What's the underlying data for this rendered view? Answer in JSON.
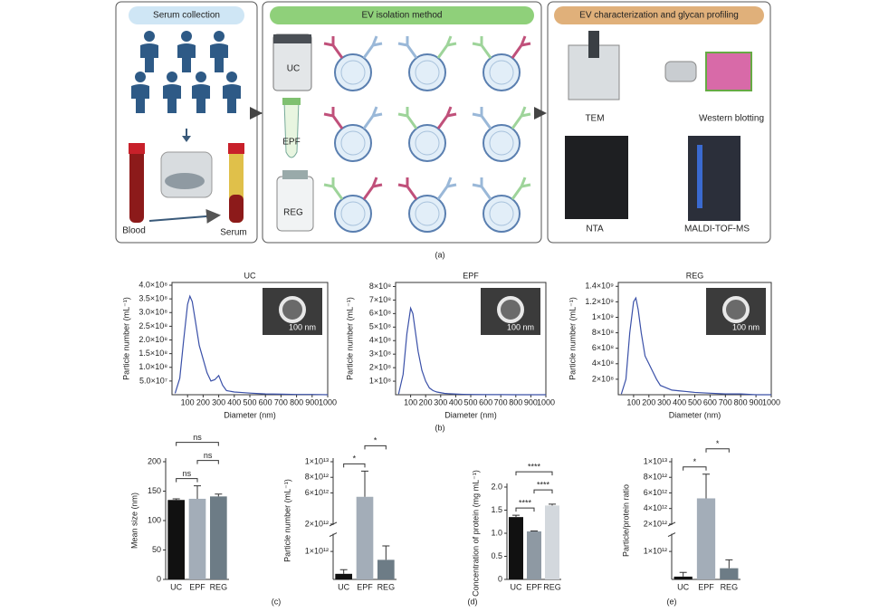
{
  "panel_a": {
    "headers": [
      "Serum collection",
      "EV isolation method",
      "EV characterization and glycan profiling"
    ],
    "methods": [
      "UC",
      "EPF",
      "REG"
    ],
    "blood": "Blood",
    "serum": "Serum",
    "instruments": [
      "TEM",
      "Western blotting",
      "NTA",
      "MALDI-TOF-MS"
    ]
  },
  "panel_labels": [
    "(a)",
    "(b)",
    "(c)",
    "(d)",
    "(e)"
  ],
  "chart_data": [
    {
      "type": "line",
      "title": "UC",
      "x_label": "Diameter (nm)",
      "y_label": "Particle number (mL⁻¹)",
      "scale_bar": "100 nm",
      "color": "#3a50a8",
      "x": [
        20,
        50,
        75,
        100,
        115,
        130,
        150,
        175,
        200,
        225,
        250,
        275,
        300,
        325,
        350,
        400,
        450,
        500,
        600,
        700,
        800,
        900,
        1000
      ],
      "values": [
        5000000,
        60000000,
        200000000,
        330000000,
        360000000,
        340000000,
        270000000,
        180000000,
        130000000,
        80000000,
        50000000,
        55000000,
        70000000,
        35000000,
        15000000,
        10000000,
        8000000,
        6000000,
        3000000,
        2000000,
        1000000,
        1000000,
        0
      ],
      "xlim": [
        0,
        1000
      ],
      "xticks": [
        100,
        200,
        300,
        400,
        500,
        600,
        700,
        800,
        900,
        1000
      ],
      "ylim": [
        0,
        410000000
      ],
      "yticks": [
        {
          "value": 50000000,
          "label": "5.0×10⁷"
        },
        {
          "value": 100000000,
          "label": "1.0×10⁸"
        },
        {
          "value": 150000000,
          "label": "1.5×10⁸"
        },
        {
          "value": 200000000,
          "label": "2.0×10⁸"
        },
        {
          "value": 250000000,
          "label": "2.5×10⁸"
        },
        {
          "value": 300000000,
          "label": "3.0×10⁸"
        },
        {
          "value": 350000000,
          "label": "3.5×10⁸"
        },
        {
          "value": 400000000,
          "label": "4.0×10⁸"
        }
      ]
    },
    {
      "type": "line",
      "title": "EPF",
      "x_label": "Diameter (nm)",
      "y_label": "Particle number (mL⁻¹)",
      "scale_bar": "100 nm",
      "color": "#3a50a8",
      "x": [
        20,
        50,
        75,
        100,
        115,
        130,
        150,
        175,
        200,
        225,
        250,
        275,
        300,
        325,
        350,
        400,
        450,
        500,
        600,
        700,
        800,
        900,
        1000
      ],
      "values": [
        5000000,
        150000000,
        450000000,
        640000000,
        600000000,
        480000000,
        320000000,
        180000000,
        100000000,
        50000000,
        30000000,
        20000000,
        15000000,
        10000000,
        8000000,
        5000000,
        3000000,
        2000000,
        1000000,
        1000000,
        0,
        0,
        0
      ],
      "xlim": [
        0,
        1000
      ],
      "xticks": [
        100,
        200,
        300,
        400,
        500,
        600,
        700,
        800,
        900,
        1000
      ],
      "ylim": [
        0,
        830000000
      ],
      "yticks": [
        {
          "value": 100000000,
          "label": "1×10⁸"
        },
        {
          "value": 200000000,
          "label": "2×10⁸"
        },
        {
          "value": 300000000,
          "label": "3×10⁸"
        },
        {
          "value": 400000000,
          "label": "4×10⁸"
        },
        {
          "value": 500000000,
          "label": "5×10⁸"
        },
        {
          "value": 600000000,
          "label": "6×10⁸"
        },
        {
          "value": 700000000,
          "label": "7×10⁸"
        },
        {
          "value": 800000000,
          "label": "8×10⁸"
        }
      ]
    },
    {
      "type": "line",
      "title": "REG",
      "x_label": "Diameter (nm)",
      "y_label": "Particle number (mL⁻¹)",
      "scale_bar": "100 nm",
      "color": "#3a50a8",
      "x": [
        20,
        50,
        75,
        100,
        115,
        130,
        150,
        175,
        200,
        225,
        250,
        275,
        300,
        325,
        350,
        400,
        450,
        500,
        600,
        700,
        800,
        900,
        1000
      ],
      "values": [
        10000000,
        200000000,
        800000000,
        1200000000,
        1250000000,
        1100000000,
        800000000,
        500000000,
        400000000,
        300000000,
        200000000,
        120000000,
        100000000,
        80000000,
        60000000,
        50000000,
        40000000,
        30000000,
        20000000,
        10000000,
        10000000,
        0,
        0
      ],
      "xlim": [
        0,
        1000
      ],
      "xticks": [
        100,
        200,
        300,
        400,
        500,
        600,
        700,
        800,
        900,
        1000
      ],
      "ylim": [
        0,
        1450000000
      ],
      "yticks": [
        {
          "value": 200000000,
          "label": "2×10⁸"
        },
        {
          "value": 400000000,
          "label": "4×10⁸"
        },
        {
          "value": 600000000,
          "label": "6×10⁸"
        },
        {
          "value": 800000000,
          "label": "8×10⁸"
        },
        {
          "value": 1000000000,
          "label": "1×10⁹"
        },
        {
          "value": 1200000000,
          "label": "1.2×10⁹"
        },
        {
          "value": 1400000000,
          "label": "1.4×10⁹"
        }
      ]
    },
    {
      "type": "bar",
      "y_label": "Mean size (nm)",
      "categories": [
        "UC",
        "EPF",
        "REG"
      ],
      "values": [
        135,
        137,
        141
      ],
      "errors": [
        2,
        22,
        4
      ],
      "colors": [
        "#111111",
        "#a3adb8",
        "#6d7c86"
      ],
      "ylim": [
        0,
        200
      ],
      "yticks": [
        0,
        50,
        100,
        150,
        200
      ],
      "significance": [
        {
          "pair": [
            0,
            1
          ],
          "label": "ns"
        },
        {
          "pair": [
            1,
            2
          ],
          "label": "ns"
        },
        {
          "pair": [
            0,
            2
          ],
          "label": "ns"
        }
      ]
    },
    {
      "type": "bar",
      "y_label": "Particle number (mL⁻¹)",
      "categories": [
        "UC",
        "EPF",
        "REG"
      ],
      "values": [
        200000000000,
        5500000000000,
        700000000000
      ],
      "errors": [
        150000000000,
        3300000000000,
        500000000000
      ],
      "colors": [
        "#111111",
        "#a3adb8",
        "#6d7c86"
      ],
      "ylim": [
        0,
        10000000000000
      ],
      "ybreak": [
        1600000000000,
        2000000000000
      ],
      "yticks": [
        {
          "value": 1000000000000,
          "label": "1×10¹²"
        },
        {
          "value": 2000000000000,
          "label": "2×10¹²"
        },
        {
          "value": 6000000000000,
          "label": "6×10¹²"
        },
        {
          "value": 8000000000000,
          "label": "8×10¹²"
        },
        {
          "value": 10000000000000,
          "label": "1×10¹³"
        }
      ],
      "significance": [
        {
          "pair": [
            0,
            1
          ],
          "label": "*"
        },
        {
          "pair": [
            1,
            2
          ],
          "label": "*"
        }
      ]
    },
    {
      "type": "bar",
      "y_label": "Concentration of protein (mg mL⁻¹)",
      "categories": [
        "UC",
        "EPF",
        "REG"
      ],
      "values": [
        1.35,
        1.04,
        1.6
      ],
      "errors": [
        0.04,
        0.01,
        0.03
      ],
      "colors": [
        "#111111",
        "#8e99a3",
        "#d3d8dd"
      ],
      "ylim": [
        0,
        2.0
      ],
      "yticks": [
        0,
        0.5,
        {
          "value": 1.0,
          "label": "1.0"
        },
        1.5,
        {
          "value": 2.0,
          "label": "2.0"
        }
      ],
      "significance": [
        {
          "pair": [
            0,
            1
          ],
          "label": "****"
        },
        {
          "pair": [
            1,
            2
          ],
          "label": "****"
        },
        {
          "pair": [
            0,
            2
          ],
          "label": "****"
        }
      ]
    },
    {
      "type": "bar",
      "y_label": "Particle/protein ratio",
      "categories": [
        "UC",
        "EPF",
        "REG"
      ],
      "values": [
        100000000000,
        5300000000000,
        400000000000
      ],
      "errors": [
        150000000000,
        3100000000000,
        300000000000
      ],
      "colors": [
        "#111111",
        "#a3adb8",
        "#6d7c86"
      ],
      "ylim": [
        0,
        10000000000000
      ],
      "ybreak": [
        1600000000000,
        2000000000000
      ],
      "yticks": [
        {
          "value": 1000000000000,
          "label": "1×10¹²"
        },
        {
          "value": 2000000000000,
          "label": "2×10¹²"
        },
        {
          "value": 4000000000000,
          "label": "4×10¹²"
        },
        {
          "value": 6000000000000,
          "label": "6×10¹²"
        },
        {
          "value": 8000000000000,
          "label": "8×10¹²"
        },
        {
          "value": 10000000000000,
          "label": "1×10¹³"
        }
      ],
      "significance": [
        {
          "pair": [
            0,
            1
          ],
          "label": "*"
        },
        {
          "pair": [
            1,
            2
          ],
          "label": "*"
        }
      ]
    }
  ]
}
